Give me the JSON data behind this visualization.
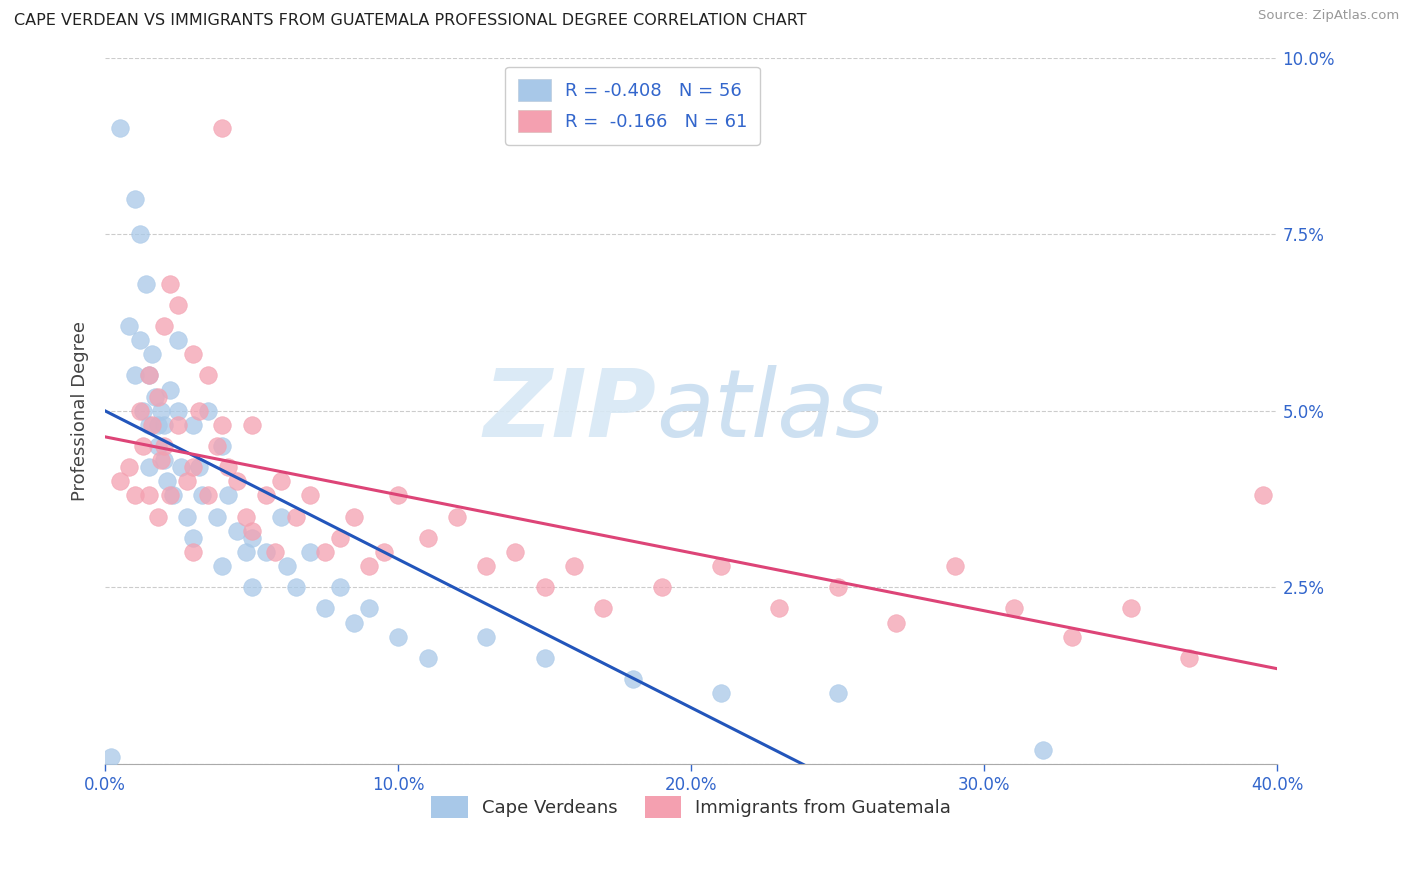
{
  "title": "CAPE VERDEAN VS IMMIGRANTS FROM GUATEMALA PROFESSIONAL DEGREE CORRELATION CHART",
  "source": "Source: ZipAtlas.com",
  "ylabel": "Professional Degree",
  "xmin": 0.0,
  "xmax": 0.4,
  "ymin": 0.0,
  "ymax": 0.1,
  "xticks": [
    0.0,
    0.1,
    0.2,
    0.3,
    0.4
  ],
  "xtick_labels": [
    "0.0%",
    "10.0%",
    "20.0%",
    "30.0%",
    "40.0%"
  ],
  "yticks": [
    0.0,
    0.025,
    0.05,
    0.075,
    0.1
  ],
  "ytick_labels": [
    "",
    "2.5%",
    "5.0%",
    "7.5%",
    "10.0%"
  ],
  "legend_line1": "R = -0.408   N = 56",
  "legend_line2": "R =  -0.166   N = 61",
  "blue_color": "#a8c8e8",
  "pink_color": "#f4a0b0",
  "line_blue": "#2255bb",
  "line_pink": "#dd4477",
  "blue_scatter_x": [
    0.002,
    0.005,
    0.008,
    0.01,
    0.01,
    0.012,
    0.012,
    0.013,
    0.014,
    0.015,
    0.015,
    0.015,
    0.016,
    0.017,
    0.018,
    0.018,
    0.019,
    0.02,
    0.02,
    0.021,
    0.022,
    0.023,
    0.025,
    0.025,
    0.026,
    0.028,
    0.03,
    0.03,
    0.032,
    0.033,
    0.035,
    0.038,
    0.04,
    0.04,
    0.042,
    0.045,
    0.048,
    0.05,
    0.05,
    0.055,
    0.06,
    0.062,
    0.065,
    0.07,
    0.075,
    0.08,
    0.085,
    0.09,
    0.1,
    0.11,
    0.13,
    0.15,
    0.18,
    0.21,
    0.25,
    0.32
  ],
  "blue_scatter_y": [
    0.001,
    0.09,
    0.062,
    0.08,
    0.055,
    0.075,
    0.06,
    0.05,
    0.068,
    0.055,
    0.048,
    0.042,
    0.058,
    0.052,
    0.048,
    0.045,
    0.05,
    0.043,
    0.048,
    0.04,
    0.053,
    0.038,
    0.06,
    0.05,
    0.042,
    0.035,
    0.048,
    0.032,
    0.042,
    0.038,
    0.05,
    0.035,
    0.045,
    0.028,
    0.038,
    0.033,
    0.03,
    0.032,
    0.025,
    0.03,
    0.035,
    0.028,
    0.025,
    0.03,
    0.022,
    0.025,
    0.02,
    0.022,
    0.018,
    0.015,
    0.018,
    0.015,
    0.012,
    0.01,
    0.01,
    0.002
  ],
  "pink_scatter_x": [
    0.005,
    0.008,
    0.01,
    0.012,
    0.013,
    0.015,
    0.015,
    0.016,
    0.018,
    0.018,
    0.019,
    0.02,
    0.02,
    0.022,
    0.022,
    0.025,
    0.025,
    0.028,
    0.03,
    0.03,
    0.03,
    0.032,
    0.035,
    0.035,
    0.038,
    0.04,
    0.04,
    0.042,
    0.045,
    0.048,
    0.05,
    0.05,
    0.055,
    0.058,
    0.06,
    0.065,
    0.07,
    0.075,
    0.08,
    0.085,
    0.09,
    0.095,
    0.1,
    0.11,
    0.12,
    0.13,
    0.14,
    0.15,
    0.16,
    0.17,
    0.19,
    0.21,
    0.23,
    0.25,
    0.27,
    0.29,
    0.31,
    0.33,
    0.35,
    0.37,
    0.395
  ],
  "pink_scatter_y": [
    0.04,
    0.042,
    0.038,
    0.05,
    0.045,
    0.055,
    0.038,
    0.048,
    0.052,
    0.035,
    0.043,
    0.062,
    0.045,
    0.068,
    0.038,
    0.065,
    0.048,
    0.04,
    0.058,
    0.042,
    0.03,
    0.05,
    0.055,
    0.038,
    0.045,
    0.09,
    0.048,
    0.042,
    0.04,
    0.035,
    0.048,
    0.033,
    0.038,
    0.03,
    0.04,
    0.035,
    0.038,
    0.03,
    0.032,
    0.035,
    0.028,
    0.03,
    0.038,
    0.032,
    0.035,
    0.028,
    0.03,
    0.025,
    0.028,
    0.022,
    0.025,
    0.028,
    0.022,
    0.025,
    0.02,
    0.028,
    0.022,
    0.018,
    0.022,
    0.015,
    0.038
  ],
  "watermark_zip": "ZIP",
  "watermark_atlas": "atlas",
  "bottom_legend_label1": "Cape Verdeans",
  "bottom_legend_label2": "Immigrants from Guatemala"
}
